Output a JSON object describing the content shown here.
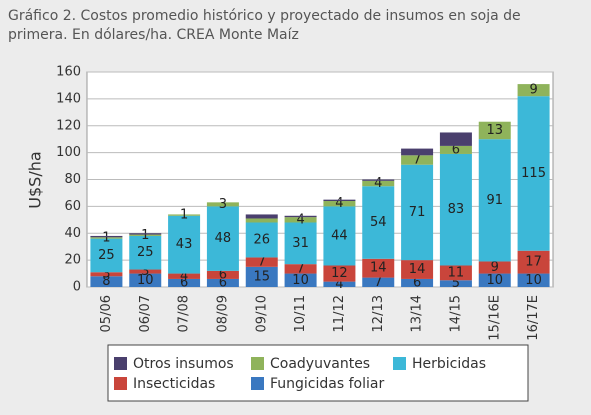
{
  "chart_data": {
    "type": "stacked-bar",
    "title_lines": [
      "Gráfico 2. Costos promedio histórico y proyectado de insumos en soja de",
      "primera. En dólares/ha. CREA Monte Maíz"
    ],
    "y_label": "U$S/ha",
    "categories": [
      "05/06",
      "06/07",
      "07/08",
      "08/09",
      "09/10",
      "10/11",
      "11/12",
      "12/13",
      "13/14",
      "14/15",
      "15/16E",
      "16/17E"
    ],
    "series": [
      {
        "name": "Fungicidas foliar",
        "color": "#3a78c0",
        "values": [
          8,
          10,
          6,
          6,
          15,
          10,
          4,
          7,
          6,
          5,
          10,
          10
        ],
        "value_labels": [
          "8",
          "10",
          "6",
          "6",
          "15",
          "10",
          "4",
          "7",
          "6",
          "5",
          "10",
          "10"
        ]
      },
      {
        "name": "Insecticidas",
        "color": "#c9453b",
        "values": [
          3,
          3,
          4,
          6,
          7,
          7,
          12,
          14,
          14,
          11,
          9,
          17
        ],
        "value_labels": [
          "3",
          "3",
          "4",
          "6",
          "7",
          "7",
          "12",
          "14",
          "14",
          "11",
          "9",
          "17"
        ]
      },
      {
        "name": "Herbicidas",
        "color": "#3cb8d8",
        "values": [
          25,
          25,
          43,
          48,
          26,
          31,
          44,
          54,
          71,
          83,
          91,
          115
        ],
        "value_labels": [
          "25",
          "25",
          "43",
          "48",
          "26",
          "31",
          "44",
          "54",
          "71",
          "83",
          "91",
          "115"
        ]
      },
      {
        "name": "Coadyuvantes",
        "color": "#8fb35b",
        "values": [
          1,
          1,
          1,
          3,
          3,
          4,
          4,
          4,
          7,
          6,
          13,
          9
        ],
        "value_labels": [
          "1",
          "1",
          "1",
          "3",
          null,
          "4",
          "4",
          "4",
          "7",
          "6",
          "13",
          "9"
        ]
      },
      {
        "name": "Otros insumos",
        "color": "#4a3f6d",
        "values": [
          1,
          1,
          0,
          0,
          3,
          1,
          1,
          1,
          5,
          10,
          0,
          0
        ],
        "value_labels": [
          null,
          null,
          null,
          null,
          null,
          null,
          null,
          null,
          null,
          null,
          null,
          null
        ]
      }
    ],
    "ylim": [
      0,
      160
    ],
    "yticks": [
      0,
      20,
      40,
      60,
      80,
      100,
      120,
      140,
      160
    ],
    "grid": true
  }
}
